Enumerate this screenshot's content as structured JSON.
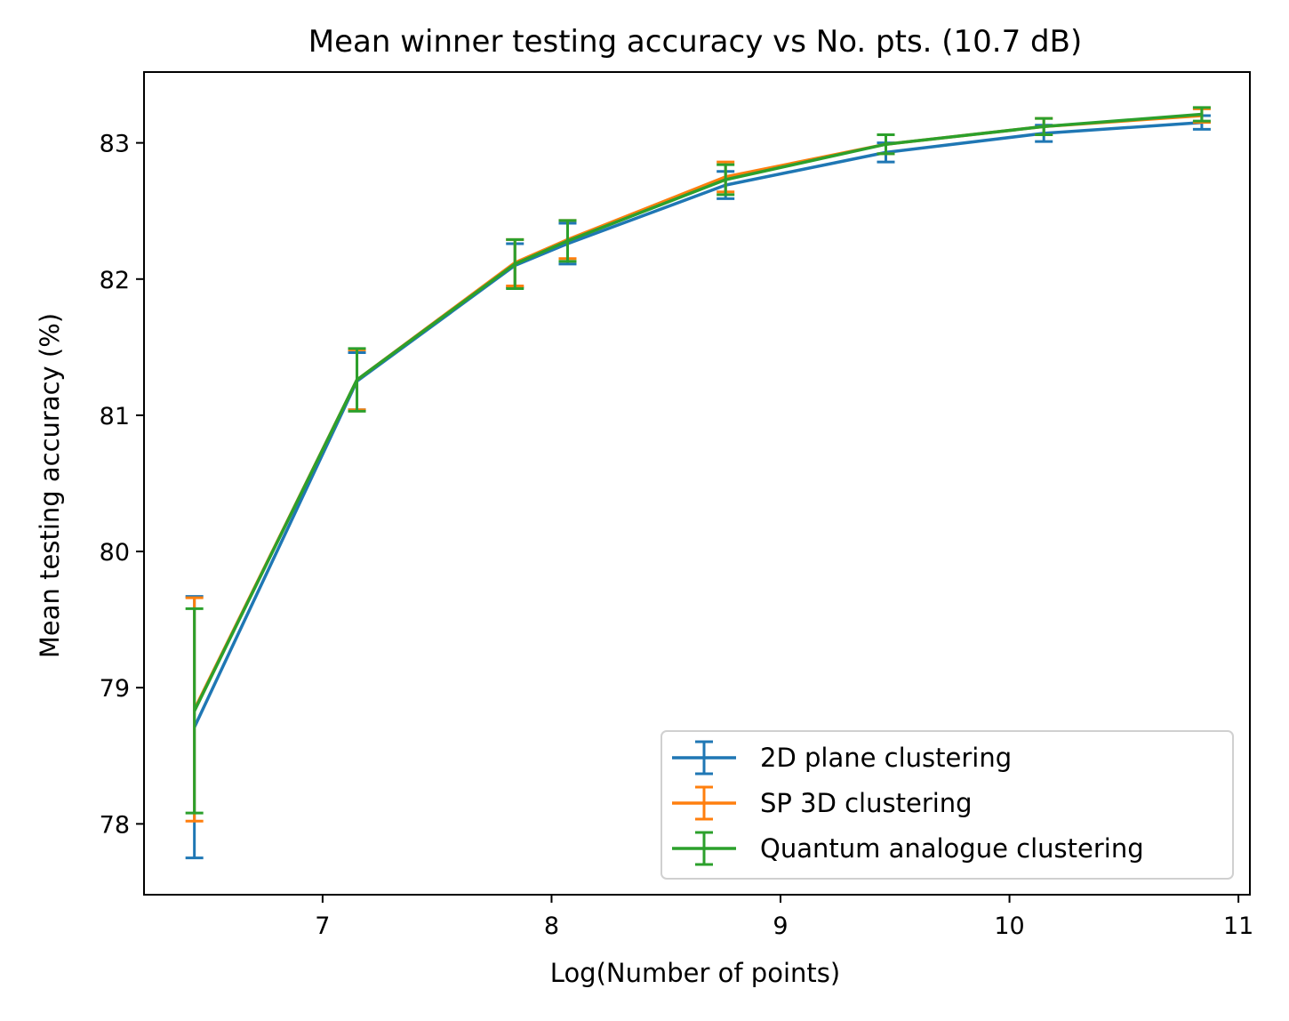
{
  "chart_data": {
    "type": "line",
    "title": "Mean winner testing accuracy vs No. pts. (10.7 dB)",
    "xlabel": "Log(Number of points)",
    "ylabel": "Mean testing accuracy  (%)",
    "xlim": [
      6.22,
      11.05
    ],
    "ylim": [
      77.48,
      83.52
    ],
    "xticks": [
      7,
      8,
      9,
      10,
      11
    ],
    "xtick_labels": [
      "7",
      "8",
      "9",
      "10",
      "11"
    ],
    "yticks": [
      78,
      79,
      80,
      81,
      82,
      83
    ],
    "ytick_labels": [
      "78",
      "79",
      "80",
      "81",
      "82",
      "83"
    ],
    "grid": false,
    "legend_position": "lower-right",
    "x": [
      6.44,
      7.15,
      7.84,
      8.07,
      8.76,
      9.46,
      10.15,
      10.84
    ],
    "series": [
      {
        "name": "2D plane clustering",
        "color": "#1f77b4",
        "values": [
          78.71,
          81.25,
          82.1,
          82.26,
          82.69,
          82.93,
          83.07,
          83.15
        ],
        "errors": [
          0.96,
          0.21,
          0.16,
          0.15,
          0.1,
          0.07,
          0.06,
          0.05
        ]
      },
      {
        "name": "SP 3D clustering",
        "color": "#ff7f0e",
        "values": [
          78.84,
          81.26,
          82.12,
          82.29,
          82.75,
          82.99,
          83.12,
          83.2
        ],
        "errors": [
          0.82,
          0.22,
          0.17,
          0.14,
          0.11,
          0.07,
          0.06,
          0.05
        ]
      },
      {
        "name": "Quantum analogue clustering",
        "color": "#2ca02c",
        "values": [
          78.83,
          81.26,
          82.11,
          82.28,
          82.73,
          82.99,
          83.12,
          83.21
        ],
        "errors": [
          0.75,
          0.23,
          0.18,
          0.15,
          0.11,
          0.07,
          0.06,
          0.05
        ]
      }
    ]
  }
}
